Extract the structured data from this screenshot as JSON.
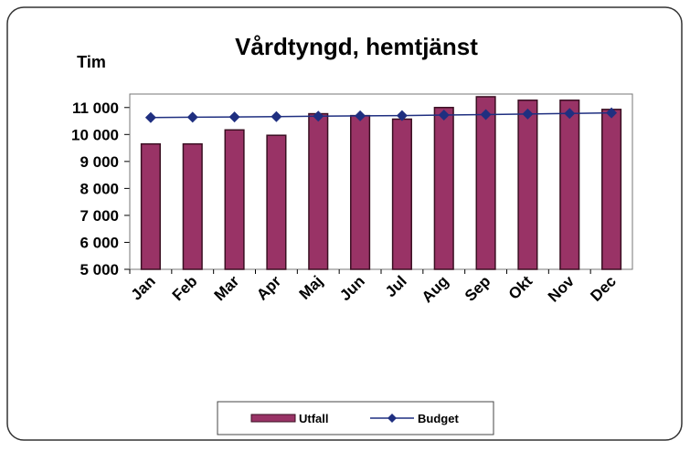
{
  "chart_data": {
    "type": "bar",
    "title": "Vårdtyngd, hemtjänst",
    "y_label": "Tim",
    "categories": [
      "Jan",
      "Feb",
      "Mar",
      "Apr",
      "Maj",
      "Jun",
      "Jul",
      "Aug",
      "Sep",
      "Okt",
      "Nov",
      "Dec"
    ],
    "series": [
      {
        "name": "Utfall",
        "type": "bar",
        "color": "#993366",
        "values": [
          9650,
          9650,
          10170,
          9970,
          10770,
          10700,
          10570,
          11000,
          11400,
          11270,
          11270,
          10930
        ]
      },
      {
        "name": "Budget",
        "type": "line",
        "color": "#1f2f80",
        "values": [
          10630,
          10640,
          10650,
          10660,
          10680,
          10690,
          10700,
          10720,
          10740,
          10760,
          10780,
          10800
        ]
      }
    ],
    "ylim": [
      5000,
      11500
    ],
    "yticks": [
      {
        "value": 5000,
        "label": "5 000"
      },
      {
        "value": 6000,
        "label": "6 000"
      },
      {
        "value": 7000,
        "label": "7 000"
      },
      {
        "value": 8000,
        "label": "8 000"
      },
      {
        "value": 9000,
        "label": "9 000"
      },
      {
        "value": 10000,
        "label": "10 000"
      },
      {
        "value": 11000,
        "label": "11 000"
      }
    ],
    "legend": "bottom"
  }
}
